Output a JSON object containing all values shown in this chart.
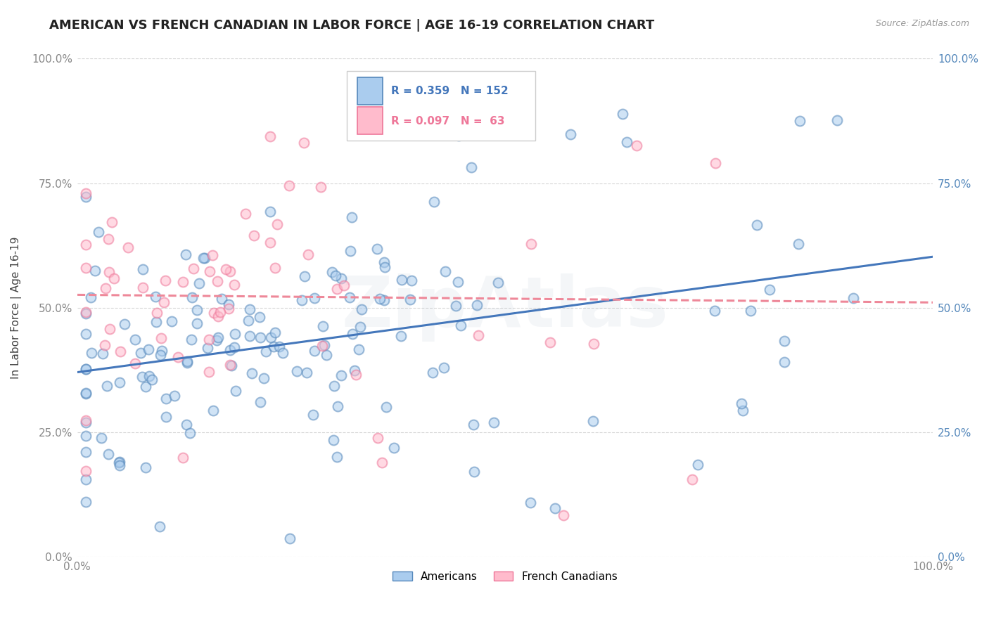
{
  "title": "AMERICAN VS FRENCH CANADIAN IN LABOR FORCE | AGE 16-19 CORRELATION CHART",
  "source": "Source: ZipAtlas.com",
  "ylabel": "In Labor Force | Age 16-19",
  "xlim": [
    0.0,
    1.0
  ],
  "ylim": [
    0.0,
    1.0
  ],
  "ytick_positions": [
    0.0,
    0.25,
    0.5,
    0.75,
    1.0
  ],
  "ytick_labels": [
    "0.0%",
    "25.0%",
    "50.0%",
    "75.0%",
    "100.0%"
  ],
  "american_fill_color": "#AACCEE",
  "american_edge_color": "#5588BB",
  "french_fill_color": "#FFBBCC",
  "french_edge_color": "#EE7799",
  "american_R": 0.359,
  "american_N": 152,
  "french_R": 0.097,
  "french_N": 63,
  "legend_label_american": "Americans",
  "legend_label_french": "French Canadians",
  "american_line_color": "#4477BB",
  "french_line_color": "#EE8899",
  "background_color": "#FFFFFF",
  "grid_color": "#CCCCCC",
  "watermark": "ZipAtlas",
  "title_fontsize": 13,
  "axis_label_fontsize": 11,
  "tick_fontsize": 11,
  "right_tick_color": "#5588BB",
  "left_tick_color": "#888888",
  "scatter_size": 100,
  "scatter_alpha": 0.55,
  "scatter_linewidth": 1.5,
  "seed": 123
}
